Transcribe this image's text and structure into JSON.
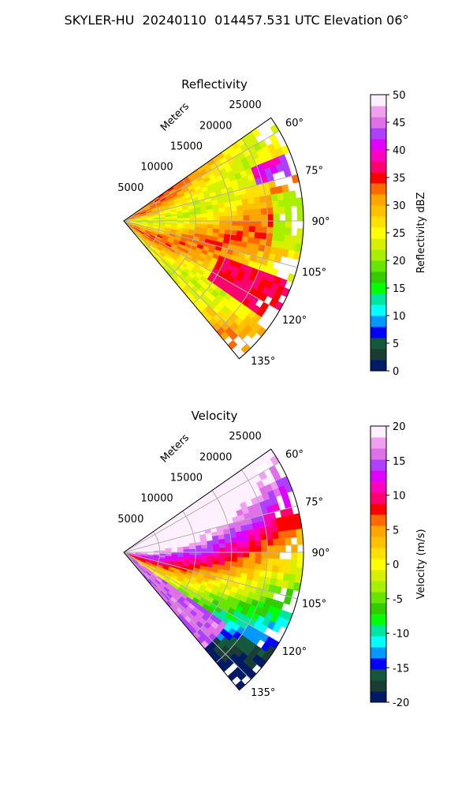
{
  "figure": {
    "title": "SKYLER-HU  20240110  014457.531 UTC Elevation 06°"
  },
  "chart_data": [
    {
      "type": "heatmap",
      "title": "Reflectivity",
      "radial_label": "Meters",
      "radial_ticks": [
        5000,
        10000,
        15000,
        20000,
        25000
      ],
      "angle_ticks_deg": [
        60,
        75,
        90,
        105,
        120,
        135
      ],
      "angle_range_deg": [
        55,
        140
      ],
      "range_max": 25000,
      "colorbar": {
        "label": "Reflectivity dBZ",
        "min": 0,
        "max": 50,
        "ticks": [
          0,
          5,
          10,
          15,
          20,
          25,
          30,
          35,
          40,
          45,
          50
        ],
        "colors": [
          "#001a66",
          "#1a3d33",
          "#14593d",
          "#0000ff",
          "#0099ff",
          "#00ffff",
          "#00e6a0",
          "#00ff00",
          "#33cc00",
          "#66e600",
          "#a8f000",
          "#d7f000",
          "#ffff00",
          "#ffe000",
          "#ffc000",
          "#ffa500",
          "#ff6a00",
          "#ff0000",
          "#ff0070",
          "#ff00c0",
          "#e000ff",
          "#b040ff",
          "#e070e8",
          "#f0a0f0",
          "#fff0ff"
        ]
      },
      "grid": true
    },
    {
      "type": "heatmap",
      "title": "Velocity",
      "radial_label": "Meters",
      "radial_ticks": [
        5000,
        10000,
        15000,
        20000,
        25000
      ],
      "angle_ticks_deg": [
        60,
        75,
        90,
        105,
        120,
        135
      ],
      "angle_range_deg": [
        55,
        140
      ],
      "range_max": 25000,
      "colorbar": {
        "label": "Velocity (m/s)",
        "min": -20,
        "max": 20,
        "ticks": [
          -20,
          -15,
          -10,
          -5,
          0,
          5,
          10,
          15,
          20
        ],
        "colors": [
          "#001a66",
          "#1a3d33",
          "#14593d",
          "#0000ff",
          "#0099ff",
          "#00ffff",
          "#00e6a0",
          "#00ff00",
          "#33cc00",
          "#66e600",
          "#a8f000",
          "#d7f000",
          "#ffff00",
          "#ffe000",
          "#ffc000",
          "#ffa500",
          "#ff6a00",
          "#ff0000",
          "#ff0070",
          "#ff00c0",
          "#e000ff",
          "#b040ff",
          "#e070e8",
          "#f0a0f0",
          "#fff0ff"
        ]
      },
      "grid": true
    }
  ]
}
